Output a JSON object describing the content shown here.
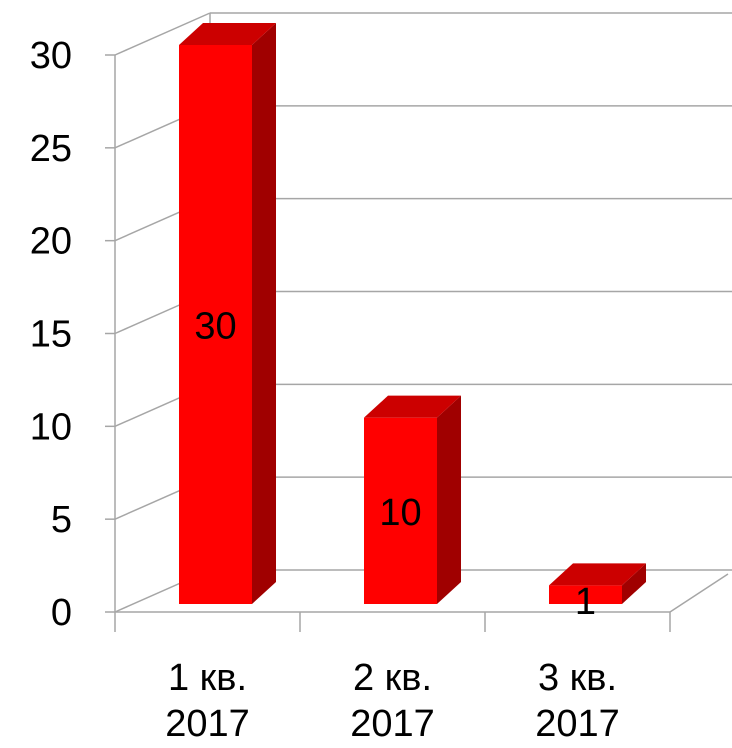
{
  "chart_data": {
    "type": "bar",
    "categories": [
      [
        "1 кв.",
        "2017"
      ],
      [
        "2 кв.",
        "2017"
      ],
      [
        "3 кв.",
        "2017"
      ]
    ],
    "values": [
      30,
      10,
      1
    ],
    "data_labels": [
      "30",
      "10",
      "1"
    ],
    "y_ticks": [
      "0",
      "5",
      "10",
      "15",
      "20",
      "25",
      "30"
    ],
    "ylim": [
      0,
      30
    ],
    "grid": true,
    "three_d": true,
    "colors": {
      "bar_front": "#ff0000",
      "bar_side": "#a00000",
      "bar_top": "#cc0000",
      "grid": "#a6a6a6"
    }
  }
}
